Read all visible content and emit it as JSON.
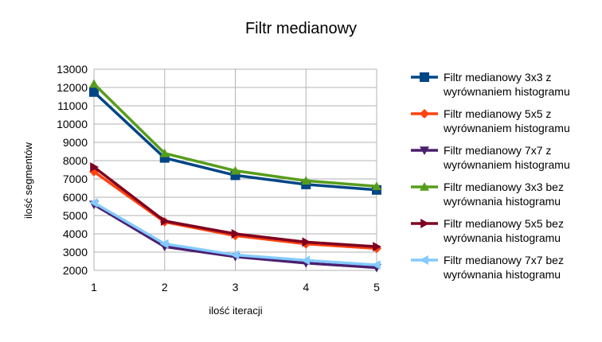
{
  "chart_data": {
    "type": "line",
    "title": "Filtr medianowy",
    "xlabel": "ilość iteracji",
    "ylabel": "ilość segmentów",
    "x": [
      1,
      2,
      3,
      4,
      5
    ],
    "ylim": [
      2000,
      13000
    ],
    "yticks": [
      2000,
      3000,
      4000,
      5000,
      6000,
      7000,
      8000,
      9000,
      10000,
      11000,
      12000,
      13000
    ],
    "grid": true,
    "legend_position": "right",
    "series": [
      {
        "name": "Filtr medianowy 3x3 z wyrównaniem histogramu",
        "name_lines": [
          "Filtr medianowy 3x3 z",
          "wyrównaniem histogramu"
        ],
        "color": "#004586",
        "marker": "square",
        "values": [
          11750,
          8150,
          7200,
          6700,
          6400
        ]
      },
      {
        "name": "Filtr medianowy 5x5 z wyrównaniem histogramu",
        "name_lines": [
          "Filtr medianowy 5x5 z",
          "wyrównaniem histogramu"
        ],
        "color": "#ff420e",
        "marker": "diamond",
        "values": [
          7400,
          4650,
          3900,
          3450,
          3200
        ]
      },
      {
        "name": "Filtr medianowy 7x7 z wyrównaniem histogramu",
        "name_lines": [
          "Filtr medianowy 7x7 z",
          "wyrównaniem histogramu"
        ],
        "color": "#4b1f6f",
        "marker": "triangle-down",
        "values": [
          5600,
          3300,
          2750,
          2400,
          2150
        ]
      },
      {
        "name": "Filtr medianowy 3x3 bez wyrównania histogramu",
        "name_lines": [
          "Filtr medianowy 3x3 bez",
          "wyrównania histogramu"
        ],
        "color": "#579d1c",
        "marker": "triangle-up",
        "values": [
          12200,
          8400,
          7450,
          6900,
          6600
        ]
      },
      {
        "name": "Filtr medianowy 5x5 bez wyrównania histogramu",
        "name_lines": [
          "Filtr medianowy 5x5 bez",
          "wyrównania histogramu"
        ],
        "color": "#7e0021",
        "marker": "triangle-right",
        "values": [
          7650,
          4700,
          4000,
          3550,
          3300
        ]
      },
      {
        "name": "Filtr medianowy 7x7 bez wyrównania histogramu",
        "name_lines": [
          "Filtr medianowy 7x7 bez",
          "wyrównania histogramu"
        ],
        "color": "#83caff",
        "marker": "triangle-left",
        "values": [
          5700,
          3450,
          2850,
          2550,
          2300
        ]
      }
    ]
  }
}
